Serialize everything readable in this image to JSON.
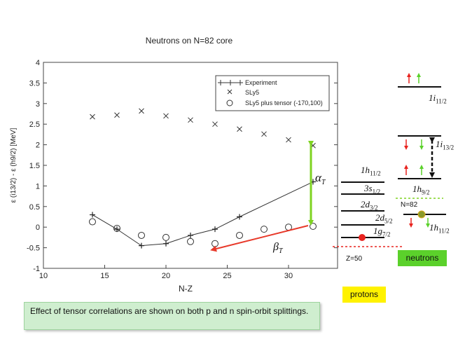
{
  "chart_data": {
    "type": "scatter",
    "title": "Neutrons on N=82 core",
    "xlabel": "N-Z",
    "ylabel": "ε (i13/2) - ε (h9/2) [MeV]",
    "xlim": [
      10,
      34
    ],
    "ylim": [
      -1,
      4
    ],
    "xticks": [
      10,
      15,
      20,
      25,
      30
    ],
    "yticks": [
      -1,
      -0.5,
      0,
      0.5,
      1,
      1.5,
      2,
      2.5,
      3,
      3.5,
      4
    ],
    "series": [
      {
        "name": "Experiment",
        "marker": "plus-line",
        "x": [
          14,
          16,
          18,
          20,
          22,
          24,
          26,
          32
        ],
        "y": [
          0.3,
          -0.05,
          -0.45,
          -0.4,
          -0.2,
          -0.05,
          0.25,
          1.1
        ]
      },
      {
        "name": "SLy5",
        "marker": "cross",
        "x": [
          14,
          16,
          18,
          20,
          22,
          24,
          26,
          28,
          30,
          32
        ],
        "y": [
          2.68,
          2.72,
          2.82,
          2.7,
          2.6,
          2.5,
          2.38,
          2.26,
          2.12,
          1.98
        ]
      },
      {
        "name": "SLy5 plus tensor (-170,100)",
        "marker": "circle",
        "x": [
          14,
          16,
          18,
          20,
          22,
          24,
          26,
          28,
          30,
          32
        ],
        "y": [
          0.13,
          -0.03,
          -0.2,
          -0.25,
          -0.35,
          -0.4,
          -0.2,
          -0.05,
          0.0,
          0.02
        ]
      }
    ],
    "annotations": [
      "αT",
      "βT"
    ],
    "legend_position": "top-right"
  },
  "proton_levels": [
    "1h11/2",
    "3s1/2",
    "2d3/2",
    "2d5/2",
    "1g7/2"
  ],
  "proton_shell_label": "Z=50",
  "neutron_levels": [
    "1i11/2",
    "1i13/2",
    "1h9/2",
    "1h11/2"
  ],
  "neutron_shell_label": "N=82",
  "tags": {
    "protons": "protons",
    "neutrons": "neutrons"
  },
  "caption": "Effect of tensor correlations are shown on both p and n spin-orbit splittings.",
  "colors": {
    "green_arrow": "#7ed321",
    "red_arrow": "#e8392a",
    "caption_bg": "#cfeecf",
    "protons_tag": "#fff200",
    "neutrons_tag": "#5bd12b",
    "red_dot": "#e8231f",
    "olive_dot": "#8a9a2a"
  }
}
